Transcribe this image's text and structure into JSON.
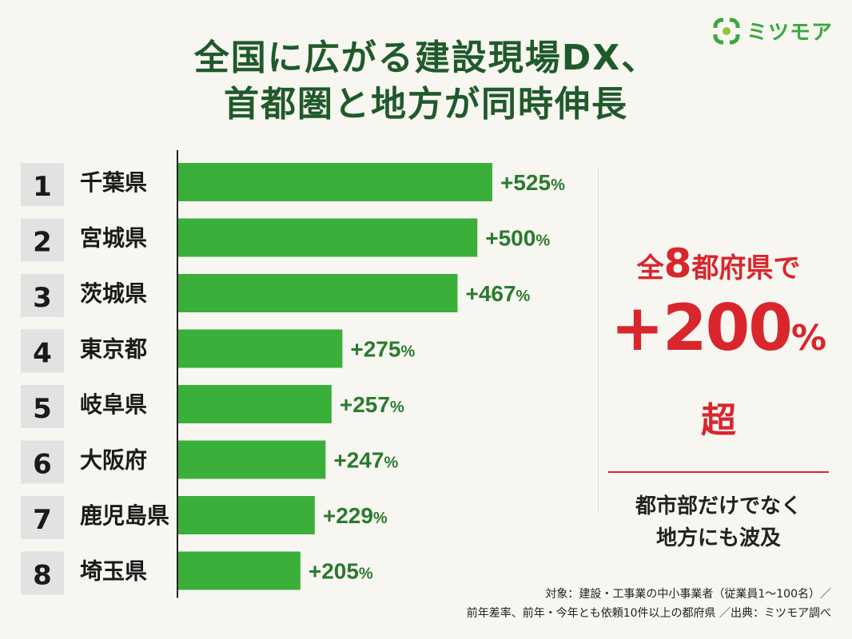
{
  "brand": {
    "name": "ミツモア",
    "color": "#3aa83f"
  },
  "title": {
    "line1": "全国に広がる建設現場DX、",
    "line2": "首都圏と地方が同時伸長"
  },
  "chart_data": {
    "type": "bar",
    "orientation": "horizontal",
    "categories": [
      "千葉県",
      "宮城県",
      "茨城県",
      "東京都",
      "岐阜県",
      "大阪府",
      "鹿児島県",
      "埼玉県"
    ],
    "ranks": [
      "1",
      "2",
      "3",
      "4",
      "5",
      "6",
      "7",
      "8"
    ],
    "values": [
      525,
      500,
      467,
      275,
      257,
      247,
      229,
      205
    ],
    "value_prefix": "+",
    "value_unit": "%",
    "bar_color": "#3ab03a",
    "label_color": "#2b7a2e",
    "xlim": [
      0,
      525
    ]
  },
  "callout": {
    "line1_pre": "全",
    "line1_num": "8",
    "line1_post": "都府県で",
    "line2_value": "+200",
    "line2_unit": "%超",
    "sub1": "都市部だけでなく",
    "sub2": "地方にも波及",
    "color": "#d9262d"
  },
  "footnote": {
    "line1": "対象：建設・工事業の中小事業者（従業員1〜100名）／",
    "line2": "前年差率、前年・今年とも依頼10件以上の都府県 ／出典：ミツモア調べ"
  }
}
